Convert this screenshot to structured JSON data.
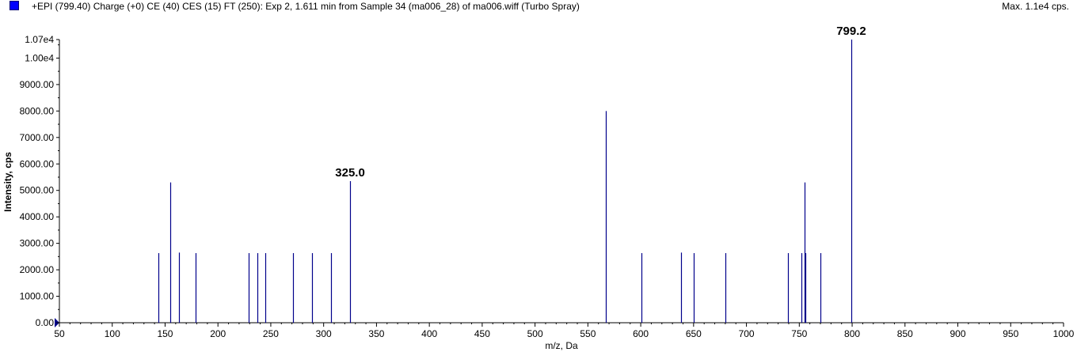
{
  "header": {
    "title": "+EPI (799.40) Charge (+0) CE (40) CES (15) FT (250): Exp 2, 1.611 min from Sample 34 (ma006_28) of ma006.wiff (Turbo Spray)",
    "max_label": "Max. 1.1e4 cps.",
    "series_color": "#0000ff"
  },
  "chart_data": {
    "type": "bar",
    "title": "+EPI (799.40) Charge (+0) CE (40) CES (15) FT (250): Exp 2, 1.611 min from Sample 34 (ma006_28) of ma006.wiff (Turbo Spray)",
    "xlabel": "m/z, Da",
    "ylabel": "Intensity, cps",
    "xlim": [
      50,
      1000
    ],
    "ylim": [
      0,
      10700
    ],
    "x_ticks": [
      "50",
      "100",
      "150",
      "200",
      "250",
      "300",
      "350",
      "400",
      "450",
      "500",
      "550",
      "600",
      "650",
      "700",
      "750",
      "800",
      "850",
      "900",
      "950",
      "1000"
    ],
    "y_ticks": [
      {
        "value": 0,
        "label": "0.00"
      },
      {
        "value": 1000,
        "label": "1000.00"
      },
      {
        "value": 2000,
        "label": "2000.00"
      },
      {
        "value": 3000,
        "label": "3000.00"
      },
      {
        "value": 4000,
        "label": "4000.00"
      },
      {
        "value": 5000,
        "label": "5000.00"
      },
      {
        "value": 6000,
        "label": "6000.00"
      },
      {
        "value": 7000,
        "label": "7000.00"
      },
      {
        "value": 8000,
        "label": "8000.00"
      },
      {
        "value": 9000,
        "label": "9000.00"
      },
      {
        "value": 10000,
        "label": "1.00e4"
      },
      {
        "value": 10700,
        "label": "1.07e4"
      }
    ],
    "line_color": "#00008b",
    "grid": false,
    "peaks": [
      {
        "mz": 144.0,
        "intensity": 2630
      },
      {
        "mz": 155.0,
        "intensity": 5300
      },
      {
        "mz": 163.0,
        "intensity": 2650
      },
      {
        "mz": 179.0,
        "intensity": 2630
      },
      {
        "mz": 229.0,
        "intensity": 2630
      },
      {
        "mz": 237.0,
        "intensity": 2630
      },
      {
        "mz": 245.0,
        "intensity": 2630
      },
      {
        "mz": 271.0,
        "intensity": 2630
      },
      {
        "mz": 289.0,
        "intensity": 2630
      },
      {
        "mz": 307.0,
        "intensity": 2630
      },
      {
        "mz": 325.0,
        "intensity": 5350
      },
      {
        "mz": 567.0,
        "intensity": 8000
      },
      {
        "mz": 601.0,
        "intensity": 2630
      },
      {
        "mz": 638.0,
        "intensity": 2650
      },
      {
        "mz": 650.0,
        "intensity": 2630
      },
      {
        "mz": 680.0,
        "intensity": 2630
      },
      {
        "mz": 739.0,
        "intensity": 2630
      },
      {
        "mz": 752.0,
        "intensity": 2630
      },
      {
        "mz": 755.0,
        "intensity": 5300
      },
      {
        "mz": 756.0,
        "intensity": 2630
      },
      {
        "mz": 770.0,
        "intensity": 2630
      },
      {
        "mz": 799.2,
        "intensity": 10700
      }
    ],
    "annotations": [
      {
        "text": "325.0",
        "mz": 325.0,
        "intensity": 5350
      },
      {
        "text": "799.2",
        "mz": 799.2,
        "intensity": 10700
      }
    ]
  }
}
